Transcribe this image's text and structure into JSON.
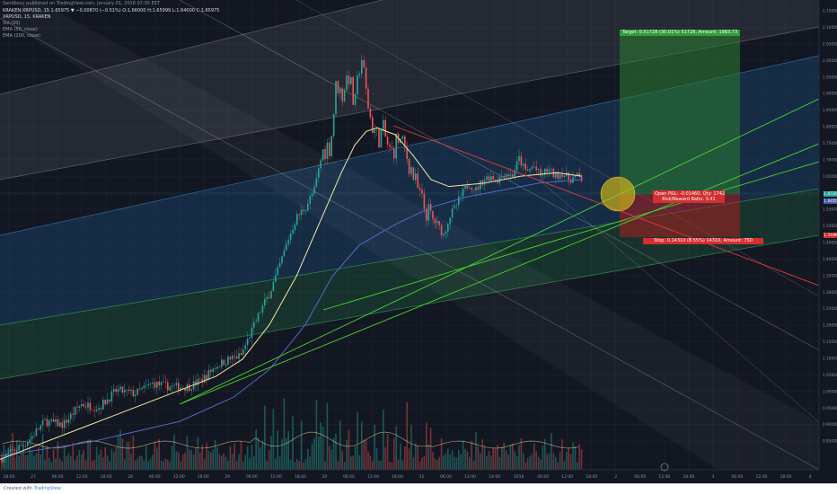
{
  "header": {
    "author_line": "Sandboxy published on TradingView.com, January 01, 2018 07:35 EST",
    "symbol_line": "KRAKEN:XRPUSD, 15   1.65975 ▼ −0.00870 (−0.51%)   O:1.66000  H:1.65999  L:1.64000  C:1.65975",
    "symbol_short": "XRPUSD, 15, KRAKEN",
    "indicators": [
      "Vol (20)",
      "EMA (50, close)",
      "EMA (200, close)"
    ]
  },
  "annotations": {
    "target": "Target: 0.51728 (30.01%) 51728, Amount: 1983.73",
    "open_pl": "Open P&L: -0.01460, Qty: 1742",
    "risk_reward": "Risk/Reward Ratio: 3.41",
    "stop": "Stop: 0.14310 (8.55%) 14310, Amount: 750"
  },
  "price_tags": {
    "current": "1.67325",
    "ema": "1.64555",
    "stop": "1.54490"
  },
  "footer": {
    "created_with": "Created with",
    "brand": "TradingView"
  },
  "colors": {
    "background": "#131722",
    "up": "#26a69a",
    "down": "#ef5350",
    "ema50": "#f4e8a4",
    "ema200": "#5b6fd6",
    "trend": "#46d62e",
    "resistance": "#e0393e",
    "target_zone": "#2e7d32",
    "stop_zone": "#b71c1c",
    "circle": "#c9b21a"
  },
  "chart_data": {
    "type": "candlestick",
    "title": "XRPUSD, 15, KRAKEN",
    "x_ticks": [
      "18:00",
      "27",
      "06:00",
      "12:00",
      "18:00",
      "28",
      "06:00",
      "12:00",
      "18:00",
      "29",
      "06:00",
      "12:00",
      "18:00",
      "30",
      "06:00",
      "12:00",
      "18:00",
      "31",
      "06:00",
      "12:00",
      "18:00",
      "2018",
      "06:00",
      "12:00",
      "18:00",
      "2",
      "06:00",
      "12:00",
      "18:00",
      "3",
      "06:00",
      "12:00",
      "18:00",
      "4"
    ],
    "y_ticks": [
      "2.15000",
      "2.10000",
      "2.05000",
      "2.00000",
      "1.95000",
      "1.90000",
      "1.85000",
      "1.80000",
      "1.75000",
      "1.70000",
      "1.65000",
      "1.60000",
      "1.55000",
      "1.50000",
      "1.45000",
      "1.40000",
      "1.35000",
      "1.30000",
      "1.25000",
      "1.20000",
      "1.15000",
      "1.10000",
      "1.05000",
      "1.00000",
      "0.95000",
      "0.90000",
      "0.85000"
    ],
    "ylim": [
      0.82,
      2.18
    ],
    "price_path": [
      [
        0,
        0.85
      ],
      [
        30,
        0.9
      ],
      [
        50,
        0.96
      ],
      [
        70,
        0.95
      ],
      [
        90,
        1.01
      ],
      [
        110,
        1.0
      ],
      [
        130,
        1.05
      ],
      [
        150,
        1.04
      ],
      [
        170,
        1.07
      ],
      [
        190,
        1.06
      ],
      [
        210,
        1.06
      ],
      [
        225,
        1.08
      ],
      [
        240,
        1.12
      ],
      [
        255,
        1.14
      ],
      [
        268,
        1.15
      ],
      [
        280,
        1.22
      ],
      [
        290,
        1.28
      ],
      [
        300,
        1.33
      ],
      [
        310,
        1.4
      ],
      [
        320,
        1.48
      ],
      [
        330,
        1.55
      ],
      [
        340,
        1.58
      ],
      [
        350,
        1.63
      ],
      [
        360,
        1.75
      ],
      [
        368,
        1.76
      ],
      [
        375,
        1.95
      ],
      [
        380,
        1.9
      ],
      [
        388,
        1.97
      ],
      [
        395,
        1.86
      ],
      [
        402,
        2.03
      ],
      [
        407,
        1.92
      ],
      [
        413,
        1.83
      ],
      [
        420,
        1.78
      ],
      [
        427,
        1.8
      ],
      [
        435,
        1.73
      ],
      [
        443,
        1.78
      ],
      [
        450,
        1.75
      ],
      [
        458,
        1.69
      ],
      [
        465,
        1.63
      ],
      [
        472,
        1.58
      ],
      [
        480,
        1.55
      ],
      [
        487,
        1.53
      ],
      [
        494,
        1.5
      ],
      [
        500,
        1.55
      ],
      [
        507,
        1.58
      ],
      [
        515,
        1.62
      ],
      [
        522,
        1.65
      ],
      [
        530,
        1.63
      ],
      [
        538,
        1.66
      ],
      [
        546,
        1.67
      ],
      [
        554,
        1.66
      ],
      [
        562,
        1.68
      ],
      [
        570,
        1.67
      ],
      [
        578,
        1.72
      ],
      [
        586,
        1.68
      ],
      [
        594,
        1.7
      ],
      [
        602,
        1.67
      ],
      [
        610,
        1.69
      ],
      [
        618,
        1.67
      ],
      [
        626,
        1.68
      ],
      [
        634,
        1.66
      ],
      [
        642,
        1.67
      ],
      [
        648,
        1.66
      ]
    ],
    "ema50_path": [
      [
        0,
        0.85
      ],
      [
        100,
        0.95
      ],
      [
        160,
        1.01
      ],
      [
        200,
        1.05
      ],
      [
        240,
        1.09
      ],
      [
        270,
        1.14
      ],
      [
        300,
        1.24
      ],
      [
        330,
        1.38
      ],
      [
        360,
        1.56
      ],
      [
        380,
        1.68
      ],
      [
        395,
        1.76
      ],
      [
        408,
        1.8
      ],
      [
        420,
        1.81
      ],
      [
        440,
        1.79
      ],
      [
        460,
        1.73
      ],
      [
        480,
        1.66
      ],
      [
        500,
        1.64
      ],
      [
        540,
        1.65
      ],
      [
        580,
        1.67
      ],
      [
        620,
        1.68
      ],
      [
        648,
        1.67
      ]
    ],
    "ema200_path": [
      [
        0,
        0.86
      ],
      [
        100,
        0.9
      ],
      [
        200,
        0.96
      ],
      [
        260,
        1.03
      ],
      [
        300,
        1.11
      ],
      [
        340,
        1.24
      ],
      [
        370,
        1.38
      ],
      [
        400,
        1.47
      ],
      [
        440,
        1.53
      ],
      [
        480,
        1.58
      ],
      [
        520,
        1.61
      ],
      [
        560,
        1.63
      ],
      [
        600,
        1.65
      ],
      [
        648,
        1.66
      ]
    ],
    "volume_range": [
      0,
      1
    ]
  }
}
